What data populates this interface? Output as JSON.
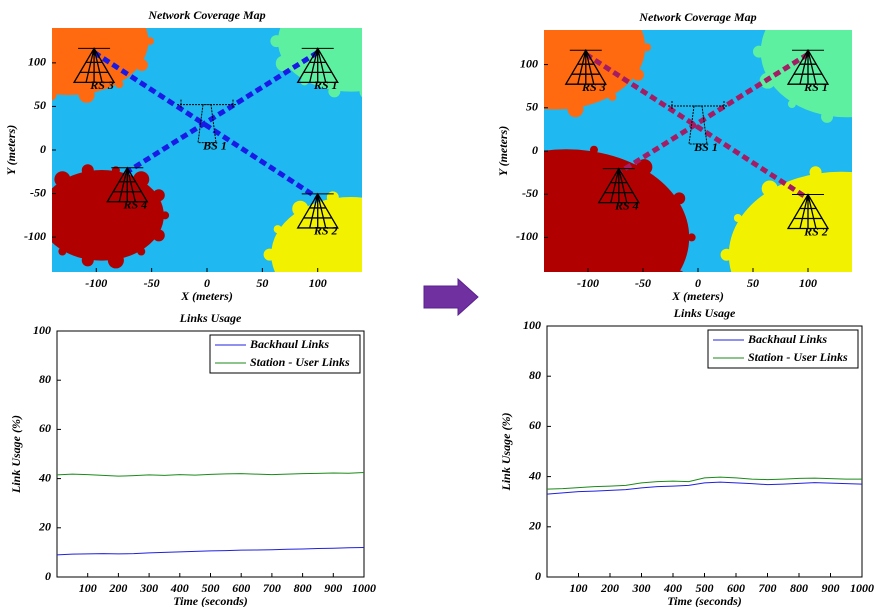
{
  "chart_data": [
    {
      "type": "coverage",
      "title": "Network Coverage Map",
      "xlabel": "X (meters)",
      "ylabel": "Y (meters)",
      "xlim": [
        -140,
        140
      ],
      "ylim": [
        -140,
        140
      ],
      "xticks": [
        -100,
        -50,
        0,
        50,
        100
      ],
      "yticks": [
        -100,
        -50,
        0,
        50,
        100
      ],
      "background": "#1fb8f0",
      "link_color": "#1a1ae6",
      "stations": [
        {
          "label": "RS 3",
          "x": -102,
          "y": 112,
          "color": "#ff6a10"
        },
        {
          "label": "RS 1",
          "x": 100,
          "y": 112,
          "color": "#5cf0a0"
        },
        {
          "label": "BS 1",
          "x": 0,
          "y": 52
        },
        {
          "label": "RS 4",
          "x": -72,
          "y": -25,
          "color": "#b00000"
        },
        {
          "label": "RS 2",
          "x": 100,
          "y": -55,
          "color": "#f2f200"
        }
      ]
    },
    {
      "type": "coverage",
      "title": "Network Coverage Map",
      "xlabel": "X (meters)",
      "ylabel": "Y (meters)",
      "xlim": [
        -140,
        140
      ],
      "ylim": [
        -140,
        140
      ],
      "xticks": [
        -100,
        -50,
        0,
        50,
        100
      ],
      "yticks": [
        -100,
        -50,
        0,
        50,
        100
      ],
      "background": "#1fb8f0",
      "link_color": "#a41c64",
      "stations": [
        {
          "label": "RS 3",
          "x": -102,
          "y": 112,
          "color": "#ff6a10"
        },
        {
          "label": "RS 1",
          "x": 100,
          "y": 112,
          "color": "#5cf0a0"
        },
        {
          "label": "BS 1",
          "x": 0,
          "y": 52
        },
        {
          "label": "RS 4",
          "x": -72,
          "y": -25,
          "color": "#b00000"
        },
        {
          "label": "RS 2",
          "x": 100,
          "y": -55,
          "color": "#f2f200"
        }
      ]
    },
    {
      "type": "line",
      "title": "Links Usage",
      "xlabel": "Time (seconds)",
      "ylabel": "Link Usage (%)",
      "xlim": [
        0,
        1000
      ],
      "ylim": [
        0,
        100
      ],
      "xticks": [
        100,
        200,
        300,
        400,
        500,
        600,
        700,
        800,
        900,
        1000
      ],
      "yticks": [
        0,
        20,
        40,
        60,
        80,
        100
      ],
      "x": [
        0,
        50,
        100,
        150,
        200,
        250,
        300,
        350,
        400,
        450,
        500,
        550,
        600,
        650,
        700,
        750,
        800,
        850,
        900,
        950,
        1000
      ],
      "legend": "upper right",
      "series": [
        {
          "name": "Backhaul Links",
          "color": "#2020e0",
          "values": [
            9,
            9.3,
            9.4,
            9.5,
            9.4,
            9.5,
            9.8,
            10,
            10.2,
            10.4,
            10.6,
            10.7,
            10.9,
            11,
            11.1,
            11.3,
            11.4,
            11.6,
            11.7,
            11.9,
            12
          ]
        },
        {
          "name": "Station - User Links",
          "color": "#1a8a1a",
          "values": [
            41.5,
            41.8,
            41.6,
            41.3,
            41,
            41.2,
            41.5,
            41.3,
            41.6,
            41.4,
            41.7,
            41.9,
            42,
            41.8,
            41.6,
            41.8,
            42,
            42.1,
            42.3,
            42.2,
            42.5
          ]
        }
      ]
    },
    {
      "type": "line",
      "title": "Links Usage",
      "xlabel": "Time (seconds)",
      "ylabel": "Link Usage (%)",
      "xlim": [
        0,
        1000
      ],
      "ylim": [
        0,
        100
      ],
      "xticks": [
        100,
        200,
        300,
        400,
        500,
        600,
        700,
        800,
        900,
        1000
      ],
      "yticks": [
        0,
        20,
        40,
        60,
        80,
        100
      ],
      "x": [
        0,
        50,
        100,
        150,
        200,
        250,
        300,
        350,
        400,
        450,
        500,
        550,
        600,
        650,
        700,
        750,
        800,
        850,
        900,
        950,
        1000
      ],
      "legend": "upper right",
      "series": [
        {
          "name": "Backhaul Links",
          "color": "#2020e0",
          "values": [
            33,
            33.5,
            34,
            34.2,
            34.5,
            34.8,
            35.5,
            36,
            36.2,
            36.5,
            37.5,
            37.8,
            37.5,
            37.2,
            36.8,
            37,
            37.3,
            37.6,
            37.4,
            37.2,
            37
          ]
        },
        {
          "name": "Station - User Links",
          "color": "#1a8a1a",
          "values": [
            35,
            35.2,
            35.6,
            36,
            36.2,
            36.5,
            37.5,
            38,
            38.2,
            38,
            39.5,
            39.8,
            39.5,
            39,
            38.8,
            39,
            39.3,
            39.4,
            39.2,
            39,
            39
          ]
        }
      ]
    }
  ]
}
